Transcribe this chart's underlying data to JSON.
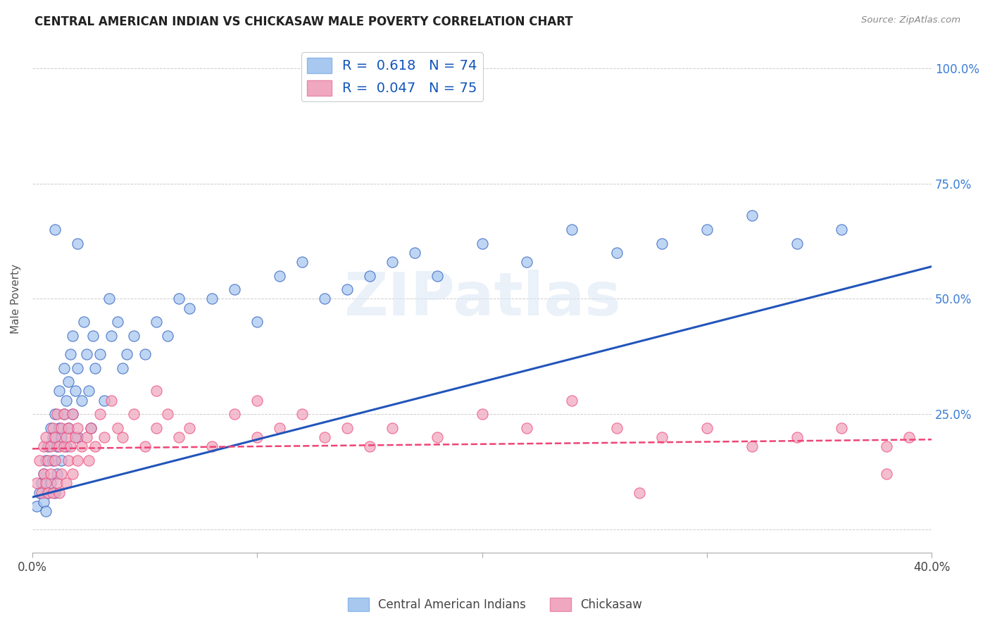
{
  "title": "CENTRAL AMERICAN INDIAN VS CHICKASAW MALE POVERTY CORRELATION CHART",
  "source": "Source: ZipAtlas.com",
  "ylabel": "Male Poverty",
  "yticks": [
    "",
    "25.0%",
    "50.0%",
    "75.0%",
    "100.0%"
  ],
  "ytick_vals": [
    0.0,
    0.25,
    0.5,
    0.75,
    1.0
  ],
  "xlim": [
    0.0,
    0.4
  ],
  "ylim": [
    -0.05,
    1.05
  ],
  "color_blue": "#A8C8F0",
  "color_pink": "#F0A8C0",
  "line_blue": "#2255BB",
  "line_pink": "#EE4477",
  "blue_scatter": [
    [
      0.002,
      0.05
    ],
    [
      0.003,
      0.08
    ],
    [
      0.004,
      0.1
    ],
    [
      0.005,
      0.06
    ],
    [
      0.005,
      0.12
    ],
    [
      0.006,
      0.15
    ],
    [
      0.006,
      0.04
    ],
    [
      0.007,
      0.08
    ],
    [
      0.007,
      0.18
    ],
    [
      0.008,
      0.1
    ],
    [
      0.008,
      0.22
    ],
    [
      0.009,
      0.15
    ],
    [
      0.009,
      0.2
    ],
    [
      0.01,
      0.08
    ],
    [
      0.01,
      0.25
    ],
    [
      0.011,
      0.18
    ],
    [
      0.011,
      0.12
    ],
    [
      0.012,
      0.22
    ],
    [
      0.012,
      0.3
    ],
    [
      0.013,
      0.2
    ],
    [
      0.013,
      0.15
    ],
    [
      0.014,
      0.25
    ],
    [
      0.014,
      0.35
    ],
    [
      0.015,
      0.18
    ],
    [
      0.015,
      0.28
    ],
    [
      0.016,
      0.22
    ],
    [
      0.016,
      0.32
    ],
    [
      0.017,
      0.38
    ],
    [
      0.018,
      0.25
    ],
    [
      0.018,
      0.42
    ],
    [
      0.019,
      0.3
    ],
    [
      0.02,
      0.2
    ],
    [
      0.02,
      0.35
    ],
    [
      0.022,
      0.28
    ],
    [
      0.023,
      0.45
    ],
    [
      0.024,
      0.38
    ],
    [
      0.025,
      0.3
    ],
    [
      0.026,
      0.22
    ],
    [
      0.027,
      0.42
    ],
    [
      0.028,
      0.35
    ],
    [
      0.03,
      0.38
    ],
    [
      0.032,
      0.28
    ],
    [
      0.034,
      0.5
    ],
    [
      0.035,
      0.42
    ],
    [
      0.038,
      0.45
    ],
    [
      0.04,
      0.35
    ],
    [
      0.042,
      0.38
    ],
    [
      0.045,
      0.42
    ],
    [
      0.05,
      0.38
    ],
    [
      0.055,
      0.45
    ],
    [
      0.06,
      0.42
    ],
    [
      0.065,
      0.5
    ],
    [
      0.01,
      0.65
    ],
    [
      0.02,
      0.62
    ],
    [
      0.07,
      0.48
    ],
    [
      0.08,
      0.5
    ],
    [
      0.09,
      0.52
    ],
    [
      0.1,
      0.45
    ],
    [
      0.11,
      0.55
    ],
    [
      0.12,
      0.58
    ],
    [
      0.13,
      0.5
    ],
    [
      0.14,
      0.52
    ],
    [
      0.15,
      0.55
    ],
    [
      0.16,
      0.58
    ],
    [
      0.17,
      0.6
    ],
    [
      0.18,
      0.55
    ],
    [
      0.2,
      0.62
    ],
    [
      0.22,
      0.58
    ],
    [
      0.24,
      0.65
    ],
    [
      0.26,
      0.6
    ],
    [
      0.28,
      0.62
    ],
    [
      0.3,
      0.65
    ],
    [
      0.32,
      0.68
    ],
    [
      0.34,
      0.62
    ],
    [
      0.36,
      0.65
    ]
  ],
  "pink_scatter": [
    [
      0.002,
      0.1
    ],
    [
      0.003,
      0.15
    ],
    [
      0.004,
      0.08
    ],
    [
      0.005,
      0.12
    ],
    [
      0.005,
      0.18
    ],
    [
      0.006,
      0.1
    ],
    [
      0.006,
      0.2
    ],
    [
      0.007,
      0.15
    ],
    [
      0.007,
      0.08
    ],
    [
      0.008,
      0.18
    ],
    [
      0.008,
      0.12
    ],
    [
      0.009,
      0.22
    ],
    [
      0.009,
      0.08
    ],
    [
      0.01,
      0.15
    ],
    [
      0.01,
      0.2
    ],
    [
      0.011,
      0.1
    ],
    [
      0.011,
      0.25
    ],
    [
      0.012,
      0.18
    ],
    [
      0.012,
      0.08
    ],
    [
      0.013,
      0.22
    ],
    [
      0.013,
      0.12
    ],
    [
      0.014,
      0.18
    ],
    [
      0.014,
      0.25
    ],
    [
      0.015,
      0.1
    ],
    [
      0.015,
      0.2
    ],
    [
      0.016,
      0.15
    ],
    [
      0.016,
      0.22
    ],
    [
      0.017,
      0.18
    ],
    [
      0.018,
      0.12
    ],
    [
      0.018,
      0.25
    ],
    [
      0.019,
      0.2
    ],
    [
      0.02,
      0.15
    ],
    [
      0.02,
      0.22
    ],
    [
      0.022,
      0.18
    ],
    [
      0.024,
      0.2
    ],
    [
      0.025,
      0.15
    ],
    [
      0.026,
      0.22
    ],
    [
      0.028,
      0.18
    ],
    [
      0.03,
      0.25
    ],
    [
      0.032,
      0.2
    ],
    [
      0.035,
      0.28
    ],
    [
      0.038,
      0.22
    ],
    [
      0.04,
      0.2
    ],
    [
      0.045,
      0.25
    ],
    [
      0.05,
      0.18
    ],
    [
      0.055,
      0.22
    ],
    [
      0.06,
      0.25
    ],
    [
      0.065,
      0.2
    ],
    [
      0.07,
      0.22
    ],
    [
      0.08,
      0.18
    ],
    [
      0.09,
      0.25
    ],
    [
      0.1,
      0.2
    ],
    [
      0.11,
      0.22
    ],
    [
      0.12,
      0.25
    ],
    [
      0.13,
      0.2
    ],
    [
      0.14,
      0.22
    ],
    [
      0.15,
      0.18
    ],
    [
      0.16,
      0.22
    ],
    [
      0.18,
      0.2
    ],
    [
      0.2,
      0.25
    ],
    [
      0.22,
      0.22
    ],
    [
      0.24,
      0.28
    ],
    [
      0.26,
      0.22
    ],
    [
      0.28,
      0.2
    ],
    [
      0.3,
      0.22
    ],
    [
      0.32,
      0.18
    ],
    [
      0.34,
      0.2
    ],
    [
      0.36,
      0.22
    ],
    [
      0.38,
      0.18
    ],
    [
      0.39,
      0.2
    ],
    [
      0.27,
      0.08
    ],
    [
      0.38,
      0.12
    ],
    [
      0.055,
      0.3
    ],
    [
      0.1,
      0.28
    ]
  ],
  "blue_line": [
    [
      0.0,
      0.07
    ],
    [
      0.4,
      0.57
    ]
  ],
  "pink_line": [
    [
      0.0,
      0.175
    ],
    [
      0.4,
      0.195
    ]
  ]
}
